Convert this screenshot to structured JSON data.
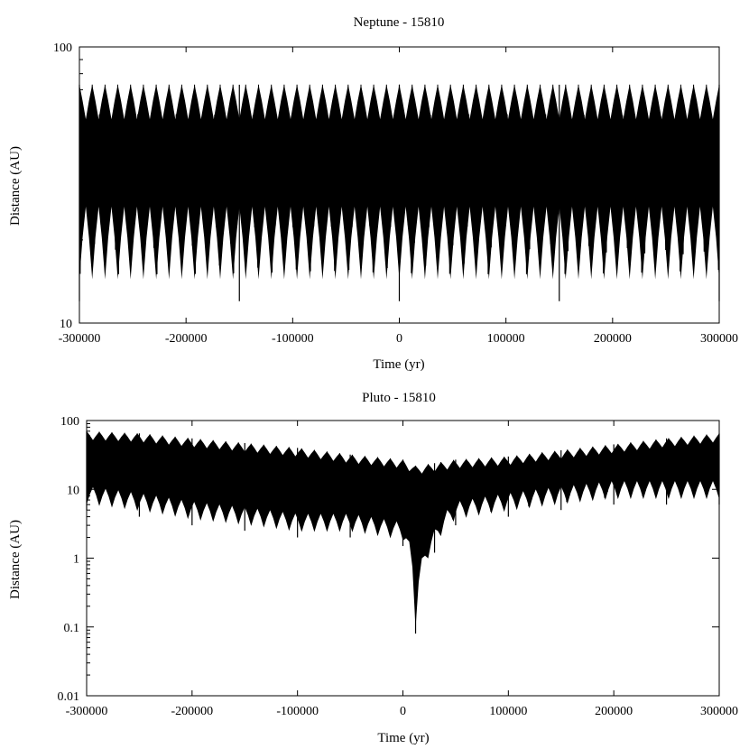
{
  "chart_data": [
    {
      "type": "line",
      "title": "Neptune - 15810",
      "xlabel": "Time (yr)",
      "ylabel": "Distance (AU)",
      "xlim": [
        -300000,
        300000
      ],
      "ylim": [
        10,
        100
      ],
      "yscale": "log",
      "xticks": [
        -300000,
        -200000,
        -100000,
        0,
        100000,
        200000,
        300000
      ],
      "xtick_labels": [
        "-300000",
        "-200000",
        "-100000",
        "0",
        "100000",
        "200000",
        "300000"
      ],
      "yticks": [
        10,
        100
      ],
      "ytick_labels": [
        "10",
        "100"
      ],
      "grid": false,
      "series": [
        {
          "x": [
            -300000,
            -150000,
            0,
            150000,
            300000
          ],
          "y_max": [
            73,
            73,
            73,
            73,
            73
          ],
          "y_min": [
            12,
            12,
            12,
            12,
            12
          ],
          "oscillation_period_yr": 12000,
          "color": "#000000"
        }
      ]
    },
    {
      "type": "line",
      "title": "Pluto - 15810",
      "xlabel": "Time (yr)",
      "ylabel": "Distance (AU)",
      "xlim": [
        -300000,
        300000
      ],
      "ylim": [
        0.01,
        100
      ],
      "yscale": "log",
      "xticks": [
        -300000,
        -200000,
        -100000,
        0,
        100000,
        200000,
        300000
      ],
      "xtick_labels": [
        "-300000",
        "-200000",
        "-100000",
        "0",
        "100000",
        "200000",
        "300000"
      ],
      "yticks": [
        0.01,
        0.1,
        1,
        10,
        100
      ],
      "ytick_labels": [
        "0.01",
        "0.1",
        "1",
        "10",
        "100"
      ],
      "grid": false,
      "series": [
        {
          "x": [
            -300000,
            -250000,
            -200000,
            -150000,
            -100000,
            -50000,
            0,
            12000,
            30000,
            50000,
            100000,
            150000,
            200000,
            250000,
            300000
          ],
          "y_max": [
            70,
            65,
            55,
            47,
            40,
            32,
            27,
            22,
            24,
            27,
            30,
            37,
            45,
            55,
            65
          ],
          "y_min": [
            5,
            4,
            3,
            2.5,
            2,
            2,
            1.5,
            0.08,
            1.2,
            3,
            4,
            5,
            6,
            6,
            6
          ],
          "oscillation_period_yr": 12000,
          "color": "#000000"
        }
      ]
    }
  ]
}
